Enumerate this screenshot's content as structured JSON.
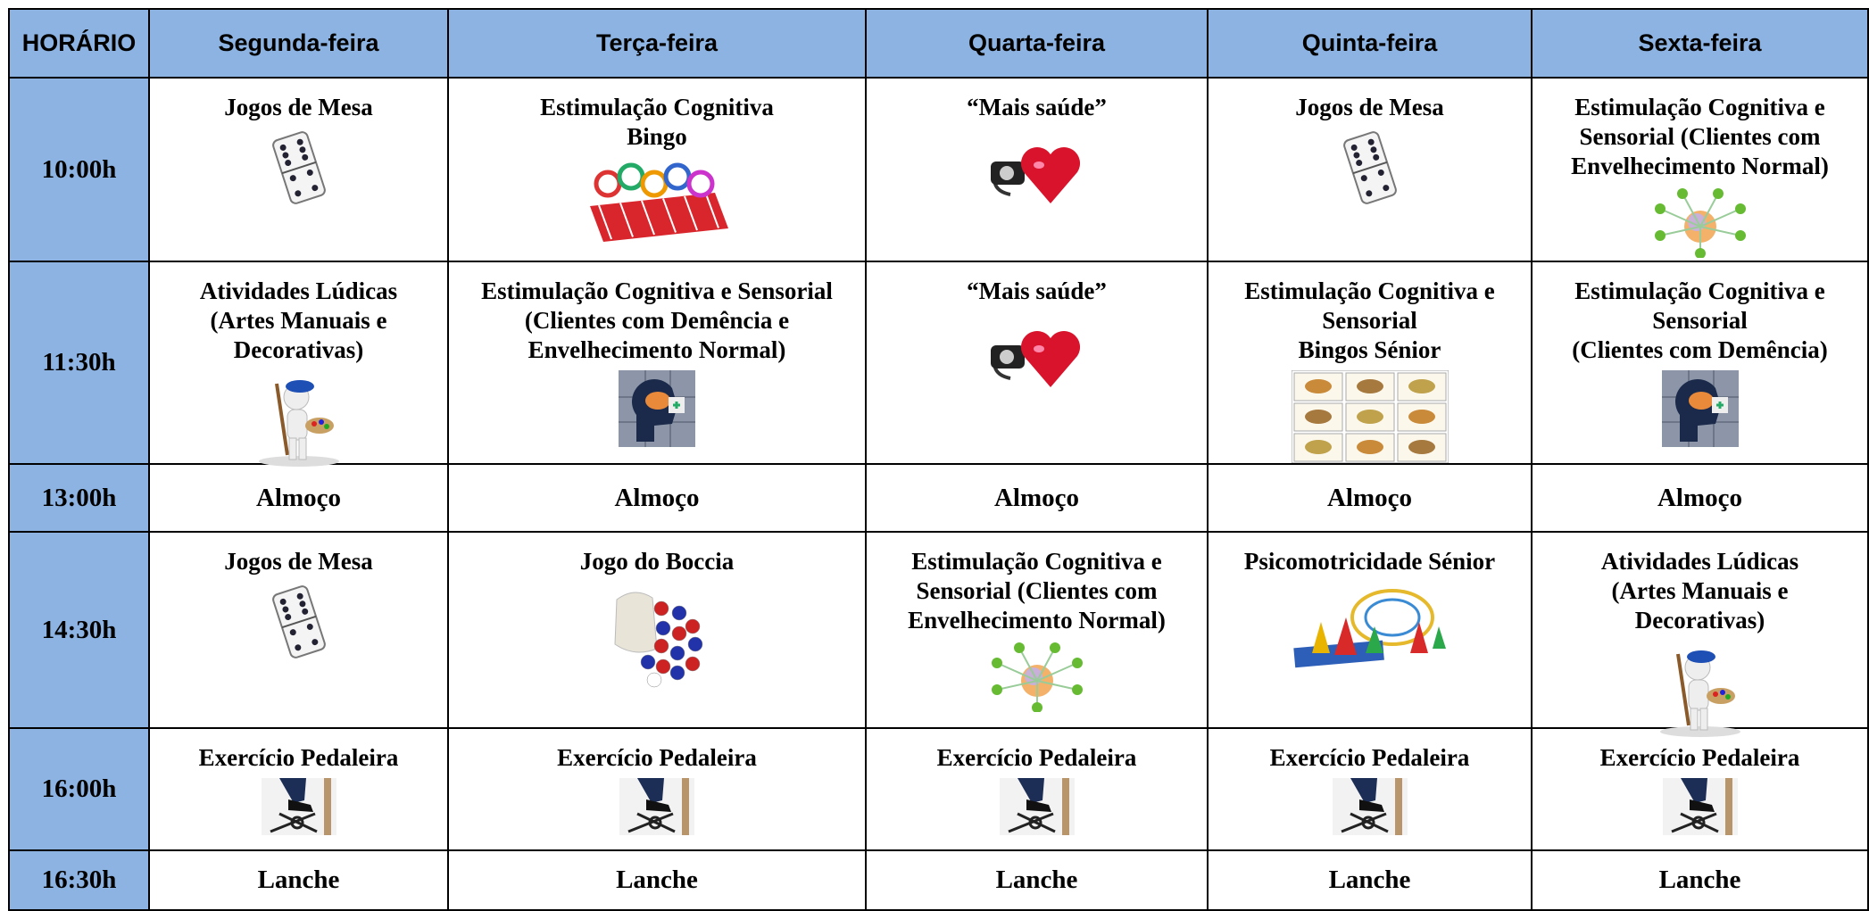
{
  "table": {
    "header": [
      "HORÁRIO",
      "Segunda-feira",
      "Terça-feira",
      "Quarta-feira",
      "Quinta-feira",
      "Sexta-feira"
    ],
    "rows": [
      {
        "time": "10:00h",
        "cells": [
          [
            "Jogos de Mesa"
          ],
          [
            "Estimulação Cognitiva",
            "Bingo"
          ],
          [
            "“Mais saúde”"
          ],
          [
            "Jogos de Mesa"
          ],
          [
            "Estimulação Cognitiva e",
            "Sensorial (Clientes com",
            "Envelhecimento Normal)"
          ]
        ]
      },
      {
        "time": "11:30h",
        "cells": [
          [
            "Atividades Lúdicas",
            "(Artes Manuais e",
            "Decorativas)"
          ],
          [
            "Estimulação Cognitiva e Sensorial",
            "(Clientes com Demência e",
            "Envelhecimento Normal)"
          ],
          [
            "“Mais saúde”"
          ],
          [
            "Estimulação Cognitiva e",
            "Sensorial",
            "Bingos Sénior"
          ],
          [
            "Estimulação Cognitiva e",
            "Sensorial",
            "(Clientes com Demência)"
          ]
        ]
      },
      {
        "time": "13:00h",
        "cells": [
          [
            "Almoço"
          ],
          [
            "Almoço"
          ],
          [
            "Almoço"
          ],
          [
            "Almoço"
          ],
          [
            "Almoço"
          ]
        ]
      },
      {
        "time": "14:30h",
        "cells": [
          [
            "Jogos de Mesa"
          ],
          [
            "Jogo do Boccia"
          ],
          [
            "Estimulação Cognitiva e",
            "Sensorial (Clientes com",
            "Envelhecimento Normal)"
          ],
          [
            "Psicomotricidade Sénior"
          ],
          [
            "Atividades Lúdicas",
            "(Artes Manuais e",
            "Decorativas)"
          ]
        ]
      },
      {
        "time": "16:00h",
        "cells": [
          [
            "Exercício Pedaleira"
          ],
          [
            "Exercício Pedaleira"
          ],
          [
            "Exercício Pedaleira"
          ],
          [
            "Exercício Pedaleira"
          ],
          [
            "Exercício Pedaleira"
          ]
        ]
      },
      {
        "time": "16:30h",
        "cells": [
          [
            "Lanche"
          ],
          [
            "Lanche"
          ],
          [
            "Lanche"
          ],
          [
            "Lanche"
          ],
          [
            "Lanche"
          ]
        ]
      }
    ]
  }
}
